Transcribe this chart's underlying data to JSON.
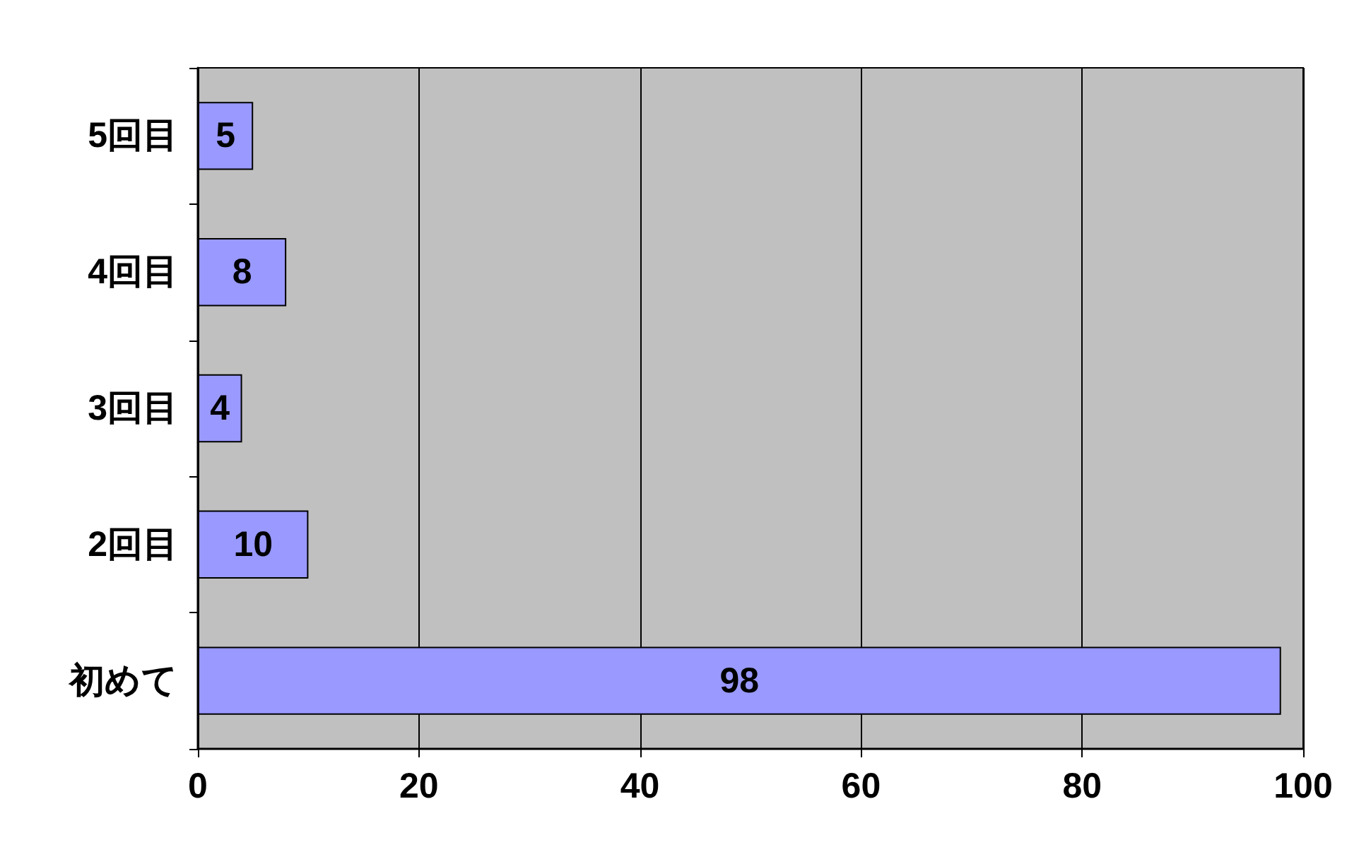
{
  "chart_data": {
    "type": "bar",
    "orientation": "horizontal",
    "categories": [
      "5回目",
      "4回目",
      "3回目",
      "2回目",
      "初めて"
    ],
    "values": [
      5,
      8,
      4,
      10,
      98
    ],
    "color": "#9999ff",
    "xlim": [
      0,
      100
    ],
    "xticks": [
      0,
      20,
      40,
      60,
      80,
      100
    ],
    "grid": "x",
    "data_labels": true
  }
}
